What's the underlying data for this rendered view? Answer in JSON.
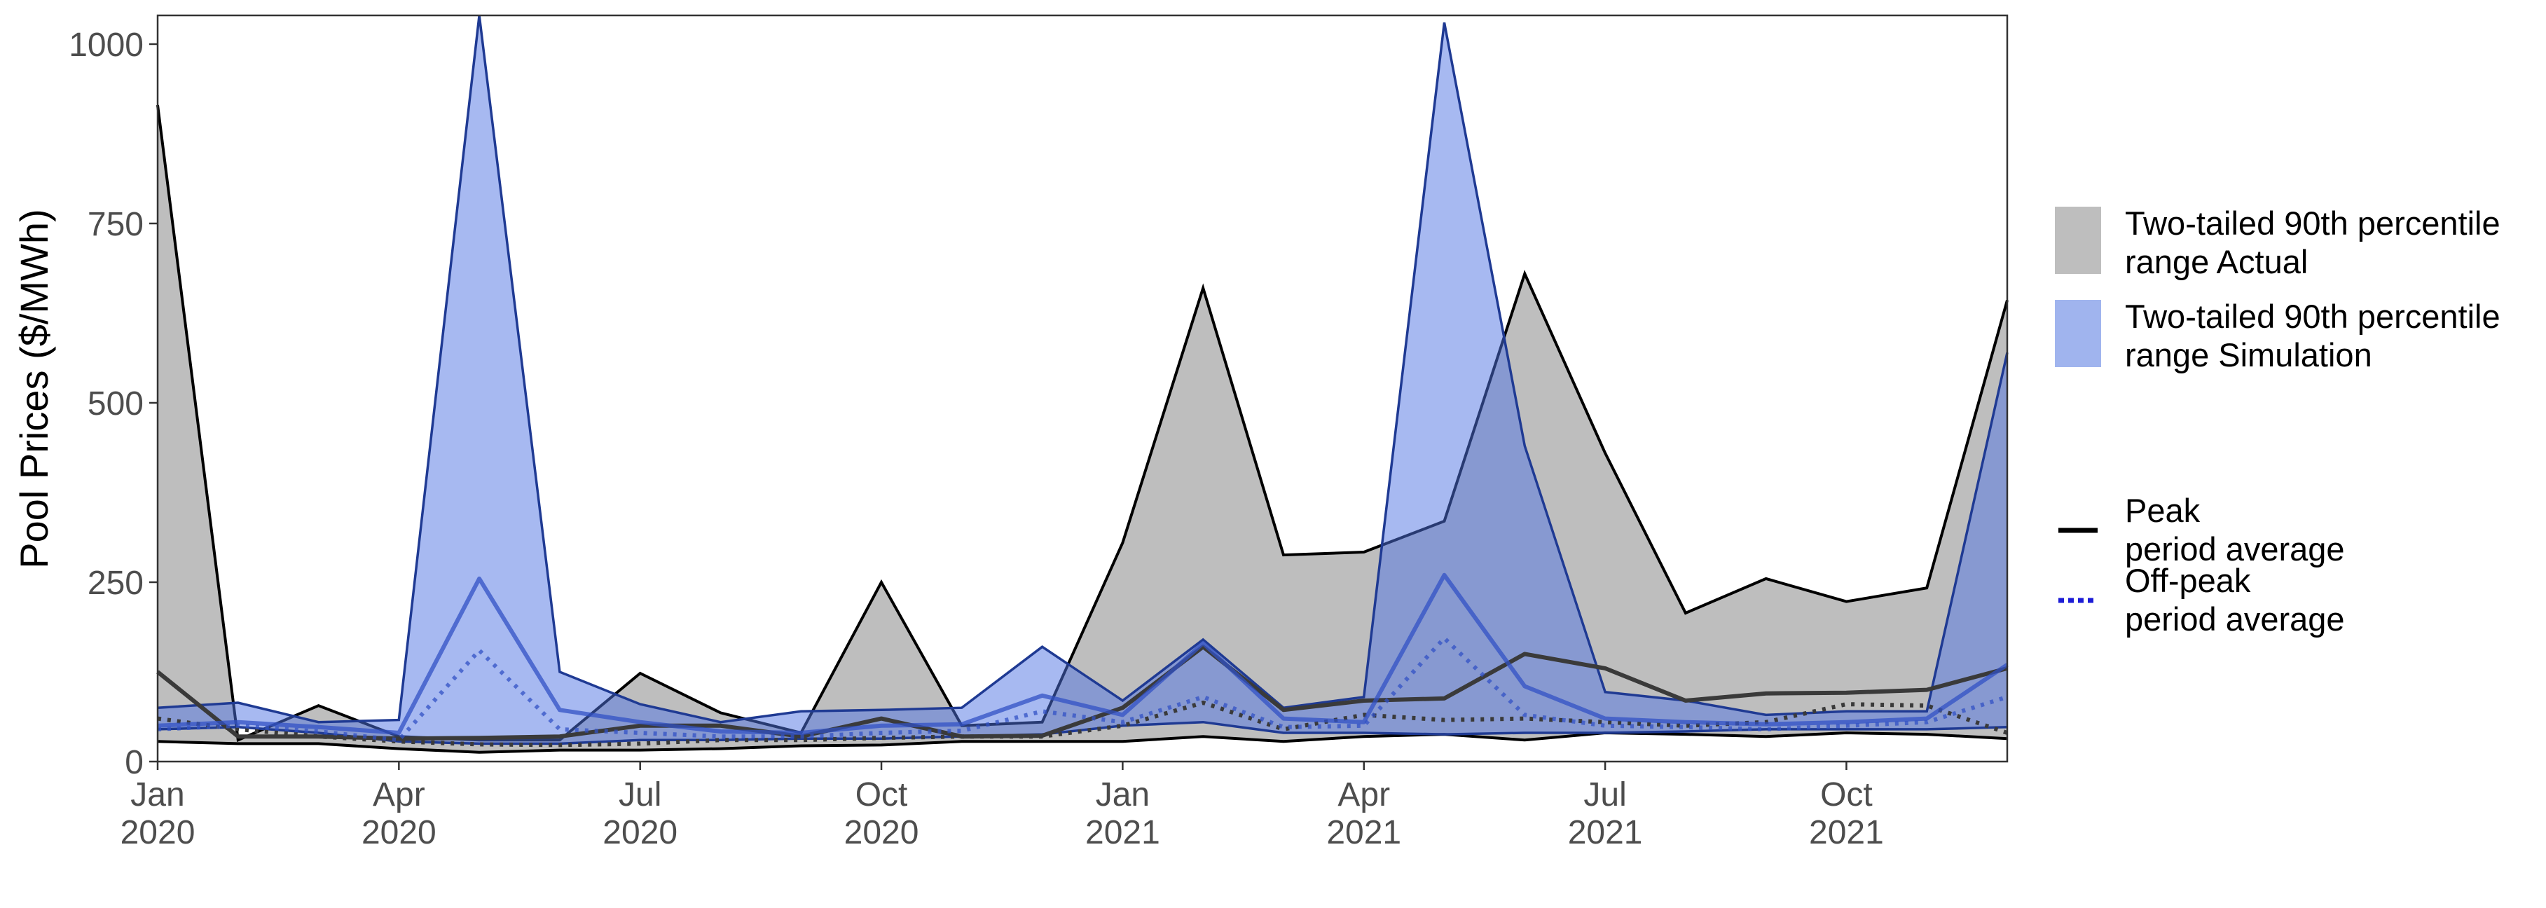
{
  "chart_data": {
    "type": "area",
    "ylabel": "Pool Prices ($/MWh)",
    "xlabel": "",
    "x": [
      "2020-01",
      "2020-02",
      "2020-03",
      "2020-04",
      "2020-05",
      "2020-06",
      "2020-07",
      "2020-08",
      "2020-09",
      "2020-10",
      "2020-11",
      "2020-12",
      "2021-01",
      "2021-02",
      "2021-03",
      "2021-04",
      "2021-05",
      "2021-06",
      "2021-07",
      "2021-08",
      "2021-09",
      "2021-10",
      "2021-11",
      "2021-12"
    ],
    "xlim": [
      "2020-01",
      "2021-12"
    ],
    "ylim": [
      0,
      1040
    ],
    "yticks": [
      0,
      250,
      500,
      750,
      1000
    ],
    "ytick_labels": [
      "0",
      "250",
      "500",
      "750",
      "1000"
    ],
    "xticks": [
      "2020-01",
      "2020-04",
      "2020-07",
      "2020-10",
      "2021-01",
      "2021-04",
      "2021-07",
      "2021-10"
    ],
    "xtick_labels": [
      [
        "Jan",
        "2020"
      ],
      [
        "Apr",
        "2020"
      ],
      [
        "Jul",
        "2020"
      ],
      [
        "Oct",
        "2020"
      ],
      [
        "Jan",
        "2021"
      ],
      [
        "Apr",
        "2021"
      ],
      [
        "Jul",
        "2021"
      ],
      [
        "Oct",
        "2021"
      ]
    ],
    "grid": false,
    "legend_position": "right",
    "legend": {
      "fill_entries": [
        {
          "key": "actual",
          "label_lines": [
            "Two-tailed 90th percentile",
            "range Actual"
          ]
        },
        {
          "key": "simulation",
          "label_lines": [
            "Two-tailed 90th percentile",
            "range Simulation"
          ]
        }
      ],
      "line_entries": [
        {
          "key": "peak",
          "label_lines": [
            "Peak",
            "period average"
          ]
        },
        {
          "key": "offpeak",
          "label_lines": [
            "Off-peak",
            "period average"
          ]
        }
      ]
    },
    "colors": {
      "actual_fill": "#bebebe",
      "actual_line": "#000000",
      "simulation_fill": "#4f74e3",
      "simulation_line": "#1f3a93",
      "peak_actual": "#3a3a3a",
      "offpeak_actual": "#3a3a3a",
      "peak_simulation": "#3152c4",
      "offpeak_simulation": "#3152c4",
      "legend_offpeak": "#1c1cd6"
    },
    "series": [
      {
        "key": "actual_range",
        "upper": [
          915,
          30,
          78,
          35,
          30,
          30,
          123,
          68,
          40,
          250,
          50,
          55,
          305,
          660,
          288,
          292,
          335,
          680,
          430,
          207,
          255,
          223,
          242,
          643
        ],
        "lower": [
          28,
          25,
          25,
          18,
          13,
          16,
          16,
          18,
          22,
          23,
          28,
          28,
          28,
          35,
          28,
          35,
          38,
          30,
          40,
          38,
          35,
          40,
          38,
          32
        ]
      },
      {
        "key": "simulation_range",
        "upper": [
          75,
          82,
          55,
          58,
          1040,
          125,
          80,
          55,
          70,
          72,
          75,
          160,
          85,
          170,
          75,
          90,
          1030,
          440,
          97,
          85,
          65,
          70,
          70,
          570
        ],
        "lower": [
          45,
          48,
          40,
          28,
          25,
          25,
          30,
          30,
          32,
          32,
          35,
          38,
          50,
          55,
          40,
          40,
          38,
          40,
          40,
          42,
          45,
          45,
          45,
          48
        ]
      },
      {
        "key": "peak_actual",
        "values": [
          125,
          35,
          35,
          32,
          33,
          35,
          50,
          50,
          35,
          60,
          35,
          36,
          75,
          160,
          72,
          85,
          88,
          150,
          130,
          85,
          95,
          96,
          100,
          130
        ]
      },
      {
        "key": "offpeak_actual",
        "values": [
          60,
          45,
          35,
          28,
          24,
          23,
          25,
          30,
          30,
          33,
          35,
          35,
          50,
          82,
          45,
          65,
          58,
          60,
          55,
          50,
          55,
          80,
          78,
          40
        ]
      },
      {
        "key": "peak_simulation",
        "values": [
          50,
          55,
          48,
          40,
          255,
          72,
          55,
          42,
          40,
          50,
          52,
          92,
          65,
          165,
          60,
          55,
          260,
          105,
          60,
          55,
          52,
          55,
          60,
          135
        ]
      },
      {
        "key": "offpeak_simulation",
        "values": [
          45,
          50,
          42,
          30,
          155,
          45,
          40,
          35,
          35,
          40,
          43,
          70,
          55,
          90,
          48,
          50,
          172,
          65,
          50,
          48,
          45,
          50,
          55,
          90
        ]
      }
    ]
  }
}
